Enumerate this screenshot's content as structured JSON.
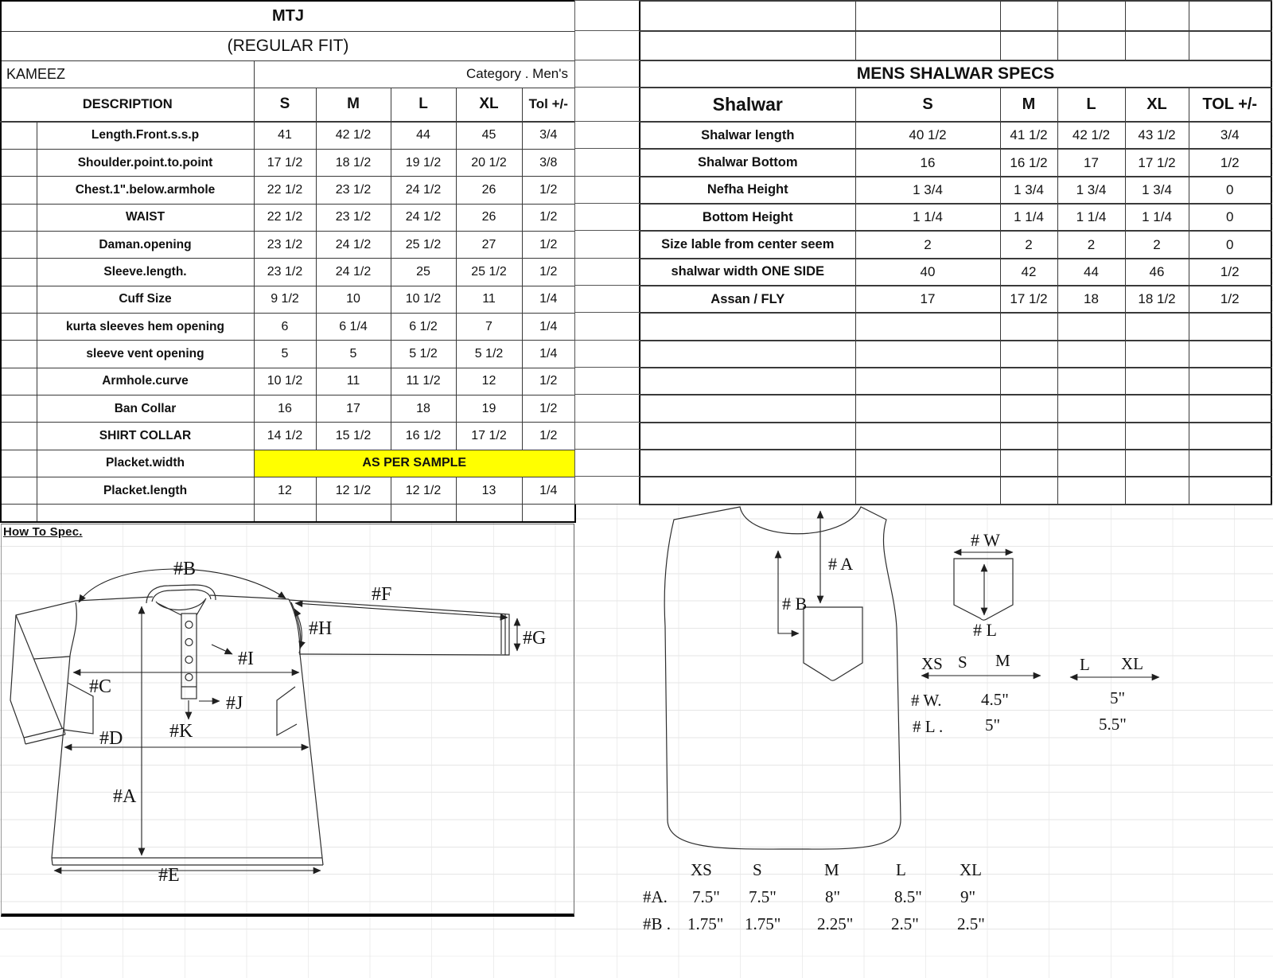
{
  "left_table": {
    "title": "MTJ",
    "subtitle": "(REGULAR FIT)",
    "garment": "KAMEEZ",
    "category": "Category .  Men's",
    "headers": [
      "DESCRIPTION",
      "S",
      "M",
      "L",
      "XL",
      "Tol +/-"
    ],
    "rows": [
      [
        "Length.Front.s.s.p",
        "41",
        "42 1/2",
        "44",
        "45",
        "3/4"
      ],
      [
        "Shoulder.point.to.point",
        "17 1/2",
        "18 1/2",
        "19 1/2",
        "20 1/2",
        "3/8"
      ],
      [
        "Chest.1\".below.armhole",
        "22 1/2",
        "23 1/2",
        "24 1/2",
        "26",
        "1/2"
      ],
      [
        "WAIST",
        "22 1/2",
        "23 1/2",
        "24 1/2",
        "26",
        "1/2"
      ],
      [
        "Daman.opening",
        "23 1/2",
        "24 1/2",
        "25 1/2",
        "27",
        "1/2"
      ],
      [
        "Sleeve.length.",
        "23 1/2",
        "24 1/2",
        "25",
        "25 1/2",
        "1/2"
      ],
      [
        "Cuff Size",
        "9 1/2",
        "10",
        "10 1/2",
        "11",
        "1/4"
      ],
      [
        "kurta sleeves hem opening",
        "6",
        "6 1/4",
        "6 1/2",
        "7",
        "1/4"
      ],
      [
        "sleeve vent opening",
        "5",
        "5",
        "5 1/2",
        "5 1/2",
        "1/4"
      ],
      [
        "Armhole.curve",
        "10 1/2",
        "11",
        "11 1/2",
        "12",
        "1/2"
      ],
      [
        "Ban Collar",
        "16",
        "17",
        "18",
        "19",
        "1/2"
      ],
      [
        "SHIRT COLLAR",
        "14 1/2",
        "15 1/2",
        "16 1/2",
        "17 1/2",
        "1/2"
      ],
      {
        "desc": "Placket.width",
        "merged": "AS PER SAMPLE"
      },
      [
        "Placket.length",
        "12",
        "12 1/2",
        "12 1/2",
        "13",
        "1/4"
      ]
    ],
    "highlight_color": "#ffff00"
  },
  "right_table": {
    "title": "MENS SHALWAR SPECS",
    "headers": [
      "Shalwar",
      "S",
      "M",
      "L",
      "XL",
      "TOL +/-"
    ],
    "rows": [
      [
        "Shalwar length",
        "40 1/2",
        "41 1/2",
        "42 1/2",
        "43 1/2",
        "3/4"
      ],
      [
        "Shalwar Bottom",
        "16",
        "16 1/2",
        "17",
        "17 1/2",
        "1/2"
      ],
      [
        "Nefha Height",
        "1 3/4",
        "1 3/4",
        "1 3/4",
        "1 3/4",
        "0"
      ],
      [
        "Bottom Height",
        "1 1/4",
        "1 1/4",
        "1 1/4",
        "1 1/4",
        "0"
      ],
      [
        "Size lable from center seem",
        "2",
        "2",
        "2",
        "2",
        "0"
      ],
      [
        "shalwar width ONE SIDE",
        "40",
        "42",
        "44",
        "46",
        "1/2"
      ],
      [
        "Assan / FLY",
        "17",
        "17 1/2",
        "18",
        "18 1/2",
        "1/2"
      ]
    ],
    "empty_rows": 7
  },
  "kameez_diagram": {
    "heading": "How To Spec. ",
    "labels": {
      "A": "#A",
      "B": "#B",
      "C": "#C",
      "D": "#D",
      "E": "#E",
      "F": "#F",
      "G": "#G",
      "H": "#H",
      "I": "#I",
      "J": "#J",
      "K": "#K"
    }
  },
  "vest_diagram": {
    "labels": {
      "A": "# A",
      "B": "# B",
      "W": "# W",
      "L": "# L"
    },
    "pocket_scale": {
      "sizes1": [
        "XS",
        "S",
        "M"
      ],
      "sizes2": [
        "L",
        "XL"
      ],
      "rows": [
        {
          "label": "# W.",
          "group1": "4.5\"",
          "group2": "5\""
        },
        {
          "label": "# L .",
          "group1": "5\"",
          "group2": "5.5\""
        }
      ]
    },
    "measure_table": {
      "headers": [
        "XS",
        "S",
        "M",
        "L",
        "XL"
      ],
      "rows": [
        {
          "label": "#A.",
          "values": [
            "7.5\"",
            "7.5\"",
            "8\"",
            "8.5\"",
            "9\""
          ]
        },
        {
          "label": "#B .",
          "values": [
            "1.75\"",
            "1.75\"",
            "2.25\"",
            "2.5\"",
            "2.5\""
          ]
        }
      ]
    }
  }
}
